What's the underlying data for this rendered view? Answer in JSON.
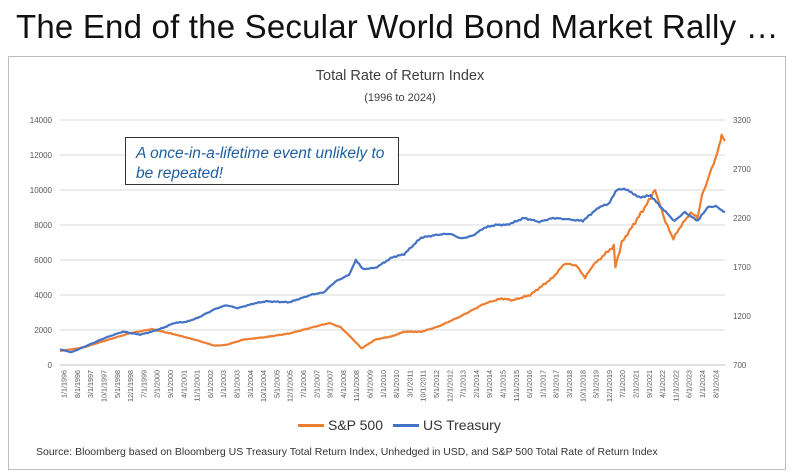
{
  "headline": "The End of the Secular World Bond Market Rally …",
  "annotation": "A once-in-a-lifetime event unlikely to be repeated!",
  "source": "Source: Bloomberg based on Bloomberg US Treasury Total Return Index, Unhedged in USD, and S&P 500 Total Rate of Return Index",
  "colors": {
    "sp500": "#ed7d31",
    "treasury": "#4472c4",
    "grid": "#d9d9d9",
    "axis_text": "#595959"
  },
  "chart_data": {
    "type": "line",
    "title": "Total Rate of Return Index",
    "subtitle": "(1996 to 2024)",
    "xlabel": "",
    "ylabel_left": "",
    "ylabel_right": "",
    "left_axis": {
      "min": 0,
      "max": 14000,
      "ticks": [
        "0",
        "2000",
        "4000",
        "6000",
        "8000",
        "10000",
        "12000",
        "14000"
      ]
    },
    "right_axis": {
      "min": 700,
      "max": 3200,
      "ticks": [
        "700",
        "1200",
        "1700",
        "2200",
        "2700",
        "3200"
      ]
    },
    "x_tick_labels": [
      "1/1/1996",
      "8/1/1996",
      "3/1/1997",
      "10/1/1997",
      "5/1/1998",
      "12/1/1998",
      "7/1/1999",
      "2/1/2000",
      "9/1/2000",
      "4/1/2001",
      "11/1/2001",
      "6/1/2002",
      "1/1/2003",
      "8/1/2003",
      "3/1/2004",
      "10/1/2004",
      "5/1/2005",
      "12/1/2005",
      "7/1/2006",
      "2/1/2007",
      "9/1/2007",
      "4/1/2008",
      "11/1/2008",
      "6/1/2009",
      "1/1/2010",
      "8/1/2010",
      "3/1/2011",
      "10/1/2011",
      "5/1/2012",
      "12/1/2012",
      "7/1/2013",
      "2/1/2014",
      "9/1/2014",
      "4/1/2015",
      "11/1/2015",
      "6/1/2016",
      "1/1/2017",
      "8/1/2017",
      "3/1/2018",
      "10/1/2018",
      "5/1/2019",
      "12/1/2019",
      "7/1/2020",
      "2/1/2021",
      "9/1/2021",
      "4/1/2022",
      "11/1/2022",
      "6/1/2023",
      "1/1/2024",
      "8/1/2024"
    ],
    "legend": {
      "position": "bottom"
    },
    "series": [
      {
        "name": "S&P 500",
        "axis": "left",
        "color": "#ed7d31",
        "points": [
          [
            1996.0,
            800
          ],
          [
            1997.0,
            1000
          ],
          [
            1998.0,
            1400
          ],
          [
            1999.0,
            1800
          ],
          [
            2000.0,
            2050
          ],
          [
            2000.5,
            1900
          ],
          [
            2001.0,
            1750
          ],
          [
            2002.0,
            1400
          ],
          [
            2002.75,
            1100
          ],
          [
            2003.25,
            1150
          ],
          [
            2004.0,
            1450
          ],
          [
            2005.0,
            1600
          ],
          [
            2006.0,
            1800
          ],
          [
            2007.0,
            2150
          ],
          [
            2007.75,
            2400
          ],
          [
            2008.25,
            2150
          ],
          [
            2008.75,
            1500
          ],
          [
            2009.15,
            950
          ],
          [
            2009.75,
            1450
          ],
          [
            2010.5,
            1650
          ],
          [
            2011.0,
            1900
          ],
          [
            2011.75,
            1900
          ],
          [
            2012.5,
            2200
          ],
          [
            2013.5,
            2800
          ],
          [
            2014.5,
            3500
          ],
          [
            2015.25,
            3800
          ],
          [
            2015.75,
            3700
          ],
          [
            2016.5,
            4000
          ],
          [
            2017.5,
            5000
          ],
          [
            2018.0,
            5800
          ],
          [
            2018.5,
            5700
          ],
          [
            2018.9,
            5000
          ],
          [
            2019.25,
            5700
          ],
          [
            2019.9,
            6500
          ],
          [
            2020.15,
            6800
          ],
          [
            2020.22,
            5600
          ],
          [
            2020.5,
            7000
          ],
          [
            2021.0,
            8000
          ],
          [
            2021.5,
            9000
          ],
          [
            2021.95,
            10000
          ],
          [
            2022.4,
            8200
          ],
          [
            2022.75,
            7200
          ],
          [
            2023.0,
            7800
          ],
          [
            2023.5,
            8700
          ],
          [
            2023.8,
            8400
          ],
          [
            2024.0,
            9700
          ],
          [
            2024.5,
            11500
          ],
          [
            2024.75,
            12500
          ],
          [
            2024.85,
            13200
          ],
          [
            2025.0,
            12800
          ]
        ]
      },
      {
        "name": "US Treasury",
        "axis": "right",
        "color": "#4472c4",
        "points": [
          [
            1996.0,
            860
          ],
          [
            1996.5,
            830
          ],
          [
            1997.0,
            880
          ],
          [
            1997.5,
            930
          ],
          [
            1998.0,
            980
          ],
          [
            1998.75,
            1040
          ],
          [
            1999.5,
            1010
          ],
          [
            2000.0,
            1040
          ],
          [
            2000.5,
            1080
          ],
          [
            2001.0,
            1130
          ],
          [
            2001.5,
            1140
          ],
          [
            2002.0,
            1180
          ],
          [
            2002.75,
            1270
          ],
          [
            2003.25,
            1310
          ],
          [
            2003.75,
            1280
          ],
          [
            2004.5,
            1330
          ],
          [
            2005.0,
            1350
          ],
          [
            2006.0,
            1340
          ],
          [
            2007.0,
            1420
          ],
          [
            2007.5,
            1440
          ],
          [
            2008.0,
            1550
          ],
          [
            2008.6,
            1620
          ],
          [
            2008.9,
            1770
          ],
          [
            2009.2,
            1680
          ],
          [
            2009.75,
            1690
          ],
          [
            2010.5,
            1800
          ],
          [
            2011.0,
            1830
          ],
          [
            2011.75,
            2000
          ],
          [
            2012.5,
            2030
          ],
          [
            2013.0,
            2040
          ],
          [
            2013.5,
            1990
          ],
          [
            2014.0,
            2020
          ],
          [
            2014.5,
            2100
          ],
          [
            2015.0,
            2130
          ],
          [
            2015.5,
            2130
          ],
          [
            2016.25,
            2200
          ],
          [
            2016.9,
            2160
          ],
          [
            2017.5,
            2200
          ],
          [
            2018.0,
            2190
          ],
          [
            2018.8,
            2170
          ],
          [
            2019.5,
            2310
          ],
          [
            2019.9,
            2340
          ],
          [
            2020.3,
            2490
          ],
          [
            2020.6,
            2500
          ],
          [
            2021.0,
            2450
          ],
          [
            2021.25,
            2410
          ],
          [
            2021.75,
            2430
          ],
          [
            2022.25,
            2300
          ],
          [
            2022.8,
            2170
          ],
          [
            2023.25,
            2260
          ],
          [
            2023.8,
            2170
          ],
          [
            2024.25,
            2310
          ],
          [
            2024.6,
            2320
          ],
          [
            2025.0,
            2260
          ]
        ]
      }
    ]
  }
}
